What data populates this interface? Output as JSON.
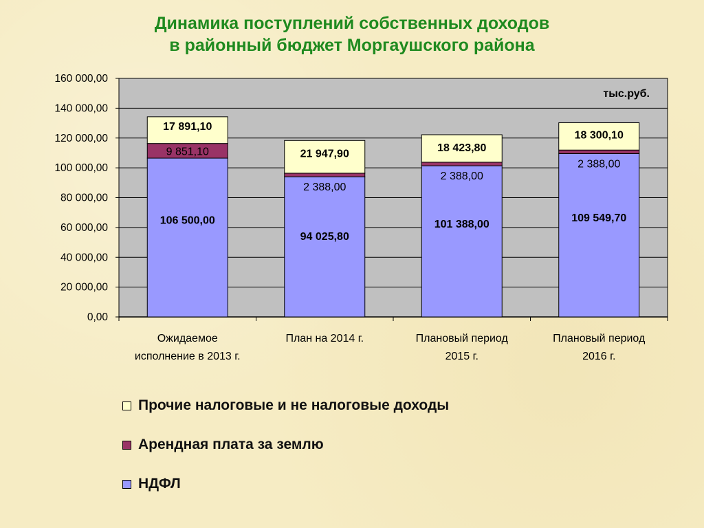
{
  "title": {
    "line1": "Динамика поступлений собственных доходов",
    "line2": "в районный бюджет Моргаушского района"
  },
  "colors": {
    "plot_bg": "#c0c0c0",
    "ndfl": "#9999ff",
    "rent": "#993366",
    "other": "#ffffcc",
    "title": "#1f8a1f"
  },
  "chart_data": {
    "type": "bar",
    "stacked": true,
    "unit_label": "тыс.руб.",
    "categories": [
      [
        "Ожидаемое",
        "исполнение в 2013 г."
      ],
      [
        "План на 2014 г."
      ],
      [
        "Плановый период",
        "2015 г."
      ],
      [
        "Плановый период",
        "2016 г."
      ]
    ],
    "series": [
      {
        "name": "НДФЛ",
        "color": "#9999ff",
        "values": [
          106500.0,
          94025.8,
          101388.0,
          109549.7
        ],
        "labels": [
          "106 500,00",
          "94 025,80",
          "101 388,00",
          "109 549,70"
        ]
      },
      {
        "name": "Арендная плата за землю",
        "color": "#993366",
        "values": [
          9851.1,
          2388.0,
          2388.0,
          2388.0
        ],
        "labels": [
          "9 851,10",
          "2 388,00",
          "2 388,00",
          "2 388,00"
        ]
      },
      {
        "name": "Прочие налоговые и не налоговые доходы",
        "color": "#ffffcc",
        "values": [
          17891.1,
          21947.9,
          18423.8,
          18300.1
        ],
        "labels": [
          "17 891,10",
          "21 947,90",
          "18 423,80",
          "18 300,10"
        ]
      }
    ],
    "ylim": [
      0,
      160000
    ],
    "yticks": [
      0,
      20000,
      40000,
      60000,
      80000,
      100000,
      120000,
      140000,
      160000
    ],
    "ytick_labels": [
      "0,00",
      "20 000,00",
      "40 000,00",
      "60 000,00",
      "80 000,00",
      "100 000,00",
      "120 000,00",
      "140 000,00",
      "160 000,00"
    ],
    "grid": true,
    "legend_position": "bottom"
  },
  "legend": [
    {
      "label": "Прочие налоговые и не налоговые доходы",
      "color": "#ffffcc"
    },
    {
      "label": "Арендная плата за землю",
      "color": "#993366"
    },
    {
      "label": "НДФЛ",
      "color": "#9999ff"
    }
  ]
}
